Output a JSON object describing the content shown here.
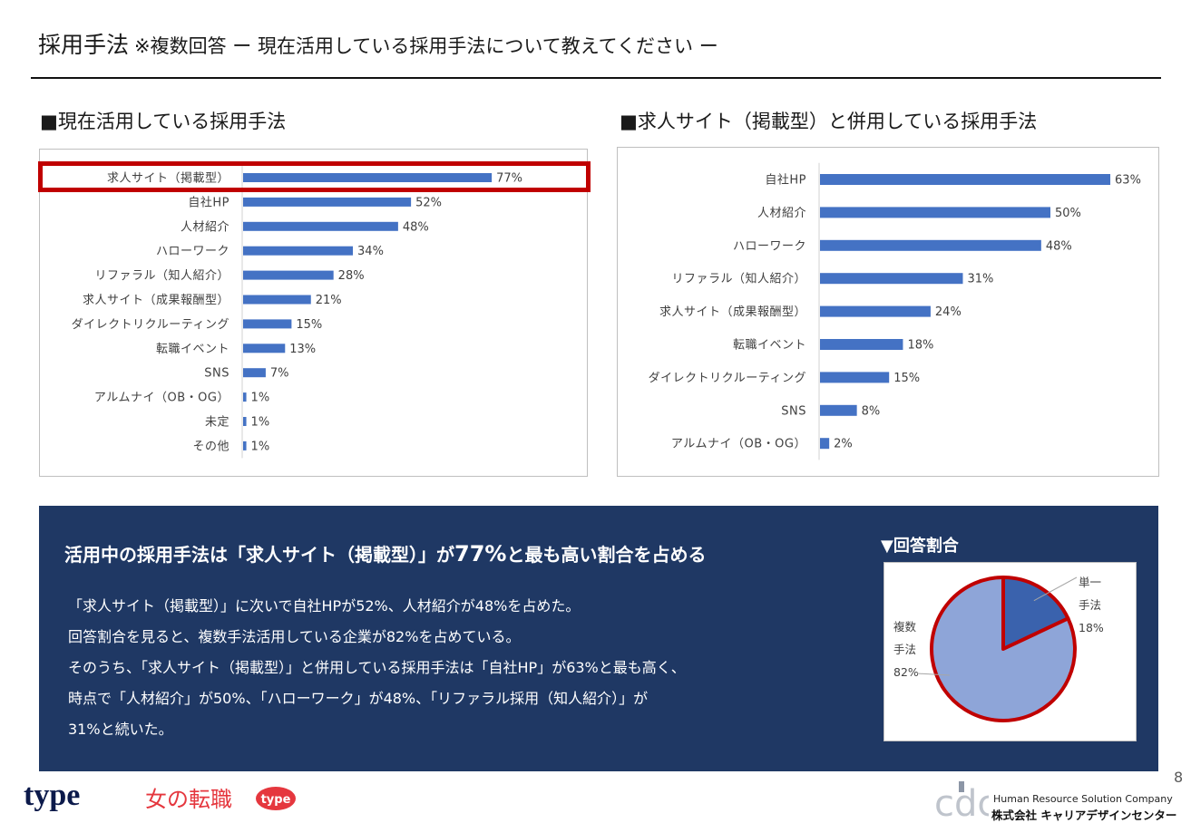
{
  "header": {
    "title": "採用手法",
    "subtitle": "※複数回答 ー 現在活用している採用手法について教えてください ー"
  },
  "left_section": {
    "heading": "■現在活用している採用手法"
  },
  "right_section": {
    "heading": "■求人サイト（掲載型）と併用している採用手法"
  },
  "chart_data": [
    {
      "type": "bar",
      "orientation": "horizontal",
      "categories": [
        "求人サイト（掲載型）",
        "自社HP",
        "人材紹介",
        "ハローワーク",
        "リファラル（知人紹介）",
        "求人サイト（成果報酬型）",
        "ダイレクトリクルーティング",
        "転職イベント",
        "SNS",
        "アルムナイ（OB・OG）",
        "未定",
        "その他"
      ],
      "values": [
        77,
        52,
        48,
        34,
        28,
        21,
        15,
        13,
        7,
        1,
        1,
        1
      ],
      "value_labels": [
        "77%",
        "52%",
        "48%",
        "34%",
        "28%",
        "21%",
        "15%",
        "13%",
        "7%",
        "1%",
        "1%",
        "1%"
      ],
      "unit": "%",
      "xlim": [
        0,
        100
      ],
      "color": "#4472c4",
      "highlight_color": "#c00000",
      "highlighted_category": "求人サイト（掲載型）",
      "grid": false
    },
    {
      "type": "bar",
      "orientation": "horizontal",
      "categories": [
        "自社HP",
        "人材紹介",
        "ハローワーク",
        "リファラル（知人紹介）",
        "求人サイト（成果報酬型）",
        "転職イベント",
        "ダイレクトリクルーティング",
        "SNS",
        "アルムナイ（OB・OG）"
      ],
      "values": [
        63,
        50,
        48,
        31,
        24,
        18,
        15,
        8,
        2
      ],
      "value_labels": [
        "63%",
        "50%",
        "48%",
        "31%",
        "24%",
        "18%",
        "15%",
        "8%",
        "2%"
      ],
      "unit": "%",
      "xlim": [
        0,
        100
      ],
      "color": "#4472c4",
      "grid": false
    },
    {
      "type": "pie",
      "title": "▼回答割合",
      "slices": [
        {
          "name": "単一手法",
          "label_lines": [
            "単一",
            "手法"
          ],
          "value": 18,
          "value_label": "18%",
          "color": "#3a62ad"
        },
        {
          "name": "複数手法",
          "label_lines": [
            "複数",
            "手法"
          ],
          "value": 82,
          "value_label": "82%",
          "color": "#8ea5d8"
        }
      ],
      "outline_color": "#c00000"
    }
  ],
  "summary": {
    "headline_pre": "活用中の採用手法は「求人サイト（掲載型）」が",
    "headline_value": "77%",
    "headline_post": "と最も高い割合を占める",
    "lines": [
      "「求人サイト（掲載型）」に次いで自社HPが52%、人材紹介が48%を占めた。",
      "回答割合を見ると、複数手法活用している企業が82%を占めている。",
      "そのうち、「求人サイト（掲載型）」と併用している採用手法は「自社HP」が63%と最も高く、",
      "時点で「人材紹介」が50%、「ハローワーク」が48%、「リファラル採用（知人紹介）」が",
      "31%と続いた。"
    ]
  },
  "footer": {
    "page_number": "8",
    "logo_type": "type",
    "logo_woman": "女の転職",
    "logo_woman_badge": "type",
    "corp_logo": "cdc",
    "corp_name_en": "Human Resource Solution Company",
    "corp_name_ja": "株式会社 キャリアデザインセンター"
  }
}
